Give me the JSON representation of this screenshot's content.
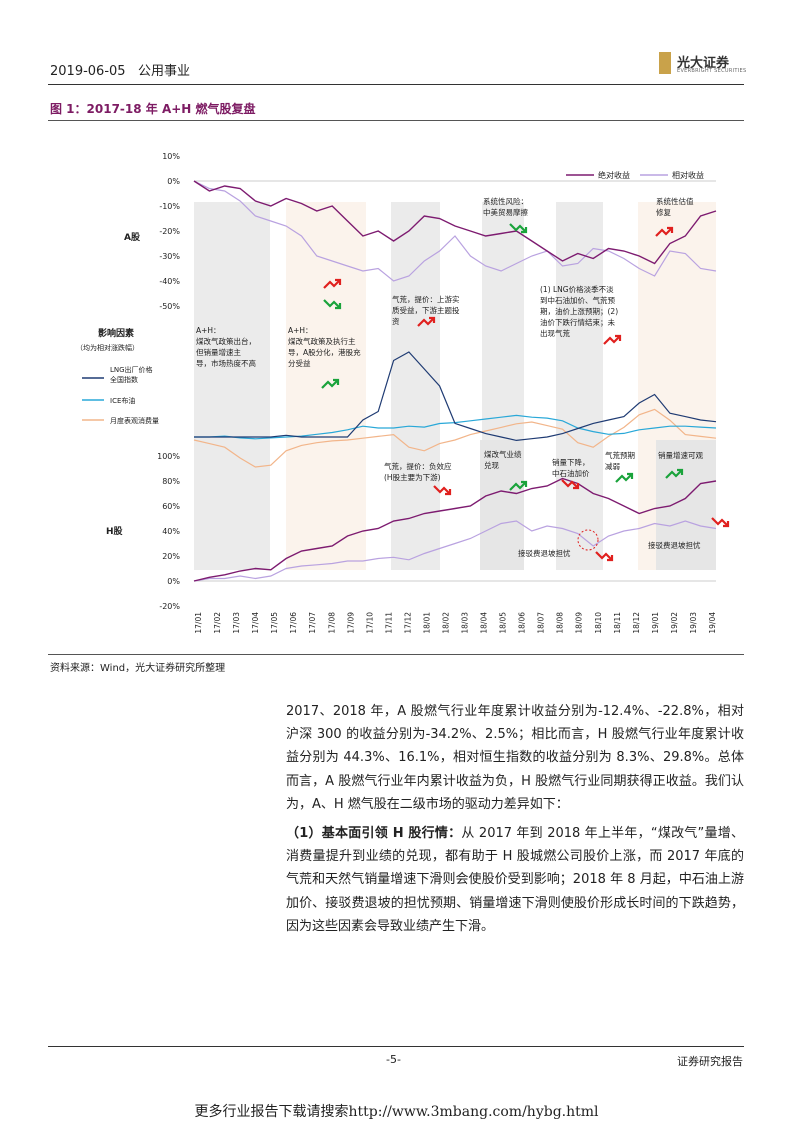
{
  "header": {
    "date": "2019-06-05",
    "sector": "公用事业",
    "brand": "光大证券",
    "brand_en": "EVERBRIGHT SECURITIES"
  },
  "figure": {
    "title": "图 1：2017-18 年 A+H 燃气股复盘",
    "source": "资料来源：Wind，光大证券研究所整理"
  },
  "chart_data": {
    "type": "line",
    "panels": [
      {
        "name": "A股",
        "ylim": [
          -50,
          10
        ],
        "yticks": [
          "10%",
          "0%",
          "-10%",
          "-20%",
          "-30%",
          "-40%",
          "-50%"
        ],
        "series": [
          {
            "name": "绝对收益",
            "color": "#7d1b70",
            "values": [
              0,
              -4,
              -2,
              -3,
              -8,
              -10,
              -7,
              -9,
              -12,
              -10,
              -16,
              -22,
              -20,
              -24,
              -20,
              -14,
              -15,
              -18,
              -20,
              -22,
              -21,
              -20,
              -24,
              -28,
              -32,
              -29,
              -31,
              -27,
              -28,
              -30,
              -33,
              -25,
              -22,
              -14,
              -12
            ]
          },
          {
            "name": "相对收益",
            "color": "#b9a2e0",
            "values": [
              0,
              -3,
              -4,
              -8,
              -14,
              -16,
              -18,
              -22,
              -30,
              -32,
              -34,
              -36,
              -35,
              -40,
              -38,
              -32,
              -28,
              -22,
              -30,
              -34,
              -36,
              -33,
              -30,
              -28,
              -34,
              -33,
              -27,
              -28,
              -31,
              -35,
              -38,
              -28,
              -29,
              -35,
              -36
            ]
          }
        ]
      },
      {
        "name": "影响因素",
        "subtitle": "（均为相对涨跌幅）",
        "series": [
          {
            "name": "LNG出厂价格全国指数",
            "color": "#1f3b73",
            "values": [
              0,
              0,
              0,
              0,
              0,
              0,
              1,
              0,
              0,
              0,
              0,
              10,
              15,
              45,
              50,
              40,
              30,
              8,
              5,
              2,
              0,
              -2,
              -1,
              0,
              2,
              5,
              8,
              10,
              12,
              20,
              25,
              14,
              12,
              10,
              9
            ]
          },
          {
            "name": "ICE布油",
            "color": "#29a8d8",
            "values": [
              0,
              0,
              1,
              -1,
              -2,
              -1,
              0,
              1,
              3,
              5,
              8,
              12,
              10,
              10,
              12,
              11,
              15,
              16,
              18,
              20,
              22,
              24,
              22,
              21,
              18,
              10,
              6,
              3,
              4,
              8,
              10,
              12,
              12,
              11,
              10
            ]
          },
          {
            "name": "月度表观消费量",
            "color": "#f2b58a",
            "values": [
              0,
              -4,
              -8,
              -20,
              -30,
              -28,
              -12,
              -6,
              -3,
              -1,
              0,
              2,
              4,
              6,
              -8,
              -12,
              -4,
              0,
              6,
              10,
              14,
              18,
              20,
              16,
              12,
              -3,
              -8,
              4,
              14,
              28,
              34,
              22,
              6,
              4,
              2
            ]
          }
        ],
        "label_lng": "LNG出厂价格\n全国指数",
        "label_ice": "ICE布油",
        "label_cons": "月度表观消费量"
      },
      {
        "name": "H股",
        "ylim": [
          -20,
          100
        ],
        "yticks": [
          "100%",
          "80%",
          "60%",
          "40%",
          "20%",
          "0%",
          "-20%"
        ],
        "series": [
          {
            "name": "绝对收益",
            "color": "#7d1b70",
            "values": [
              0,
              3,
              5,
              8,
              10,
              9,
              18,
              24,
              26,
              28,
              36,
              40,
              42,
              48,
              50,
              54,
              56,
              58,
              60,
              68,
              72,
              70,
              74,
              76,
              82,
              78,
              70,
              66,
              60,
              54,
              58,
              60,
              66,
              78,
              80
            ]
          },
          {
            "name": "相对收益",
            "color": "#b9a2e0",
            "values": [
              0,
              2,
              2,
              4,
              2,
              4,
              10,
              12,
              13,
              14,
              16,
              16,
              18,
              19,
              17,
              22,
              26,
              30,
              34,
              40,
              46,
              48,
              40,
              44,
              42,
              38,
              28,
              36,
              40,
              42,
              46,
              44,
              48,
              44,
              42
            ]
          }
        ]
      }
    ],
    "x_ticks": [
      "17/01",
      "17/02",
      "17/03",
      "17/04",
      "17/05",
      "17/06",
      "17/07",
      "17/08",
      "17/09",
      "17/10",
      "17/11",
      "17/12",
      "18/01",
      "18/02",
      "18/03",
      "18/04",
      "18/05",
      "18/06",
      "18/07",
      "18/08",
      "18/09",
      "18/10",
      "18/11",
      "18/12",
      "19/01",
      "19/02",
      "19/03",
      "19/04"
    ],
    "annotations": {
      "ah1": "A+H：\n煤改气政策出台，\n但销量增速主\n导，市场热度不高",
      "ah2": "A+H：\n煤改气政策及执行主\n导，A股分化，港股充\n分受益",
      "gas_shortage": "气荒，提价：上游实\n质受益，下游主题投\n资",
      "trade_war": "系统性风险：\n中美贸易摩擦",
      "lng": "(1) LNG价格淡季不淡\n到中石油加价、气荒预\n期，油价上涨预期；(2)\n油价下跌行情结束；未\n出现气荒",
      "valuation": "系统性估值\n修复",
      "h_shortage": "气荒，提价：负效应\n(H股主要为下游)",
      "coal_perf": "煤改气业绩\n兑现",
      "sales_drop": "销量下降，\n中石油加价",
      "gas_exp": "气荒预期\n减弱",
      "sales_up": "销量增速可观",
      "fee1": "接驳费退坡担忧",
      "fee2": "接驳费退坡担忧"
    }
  },
  "body": {
    "p1": "2017、2018 年，A 股燃气行业年度累计收益分别为-12.4%、-22.8%，相对沪深 300 的收益分别为-34.2%、2.5%；相比而言，H 股燃气行业年度累计收益分别为 44.3%、16.1%，相对恒生指数的收益分别为 8.3%、29.8%。总体而言，A 股燃气行业年内累计收益为负，H 股燃气行业同期获得正收益。我们认为，A、H 燃气股在二级市场的驱动力差异如下：",
    "p2_head": "（1）基本面引领 H 股行情：",
    "p2": "从 2017 年到 2018 年上半年，“煤改气”量增、消费量提升到业绩的兑现，都有助于 H 股城燃公司股价上涨，而 2017 年底的气荒和天然气销量增速下滑则会使股价受到影响；2018 年 8 月起，中石油上游加价、接驳费退坡的担忧预期、销量增速下滑则使股价形成长时间的下跌趋势，因为这些因素会导致业绩产生下滑。"
  },
  "footer": {
    "page": "-5-",
    "report": "证券研究报告",
    "download": "更多行业报告下载请搜索http://www.3mbang.com/hybg.html"
  }
}
